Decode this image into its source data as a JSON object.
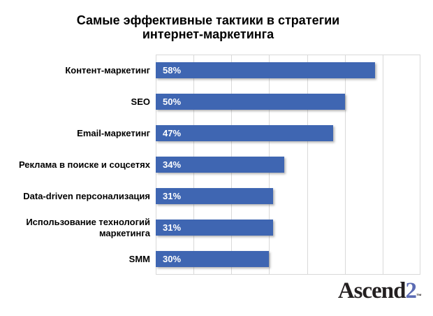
{
  "title": "Самые эффективные тактики в стратегии\nинтернет-маркетинга",
  "chart_data": {
    "type": "bar",
    "orientation": "horizontal",
    "title": "Самые эффективные тактики в стратегии интернет-маркетинга",
    "categories": [
      "Контент-маркетинг",
      "SEO",
      "Email-маркетинг",
      "Реклама в поиске и соцсетях",
      "Data-driven персонализация",
      "Использование технологий маркетинга",
      "SMM"
    ],
    "values": [
      58,
      50,
      47,
      34,
      31,
      31,
      30
    ],
    "value_labels": [
      "58%",
      "50%",
      "47%",
      "34%",
      "31%",
      "31%",
      "30%"
    ],
    "xlim": [
      0,
      70
    ],
    "gridline_step": 10,
    "grid": "vertical",
    "legend": "none",
    "xlabel": "",
    "ylabel": "",
    "bar_color": "#3F66B2",
    "gridline_color": "#D9D9D9",
    "value_label_color": "#FFFFFF"
  },
  "logo": {
    "text_main": "Ascend",
    "text_accent": "2",
    "trademark": "™",
    "accent_color": "#5C6CB4",
    "main_color": "#231F20"
  }
}
